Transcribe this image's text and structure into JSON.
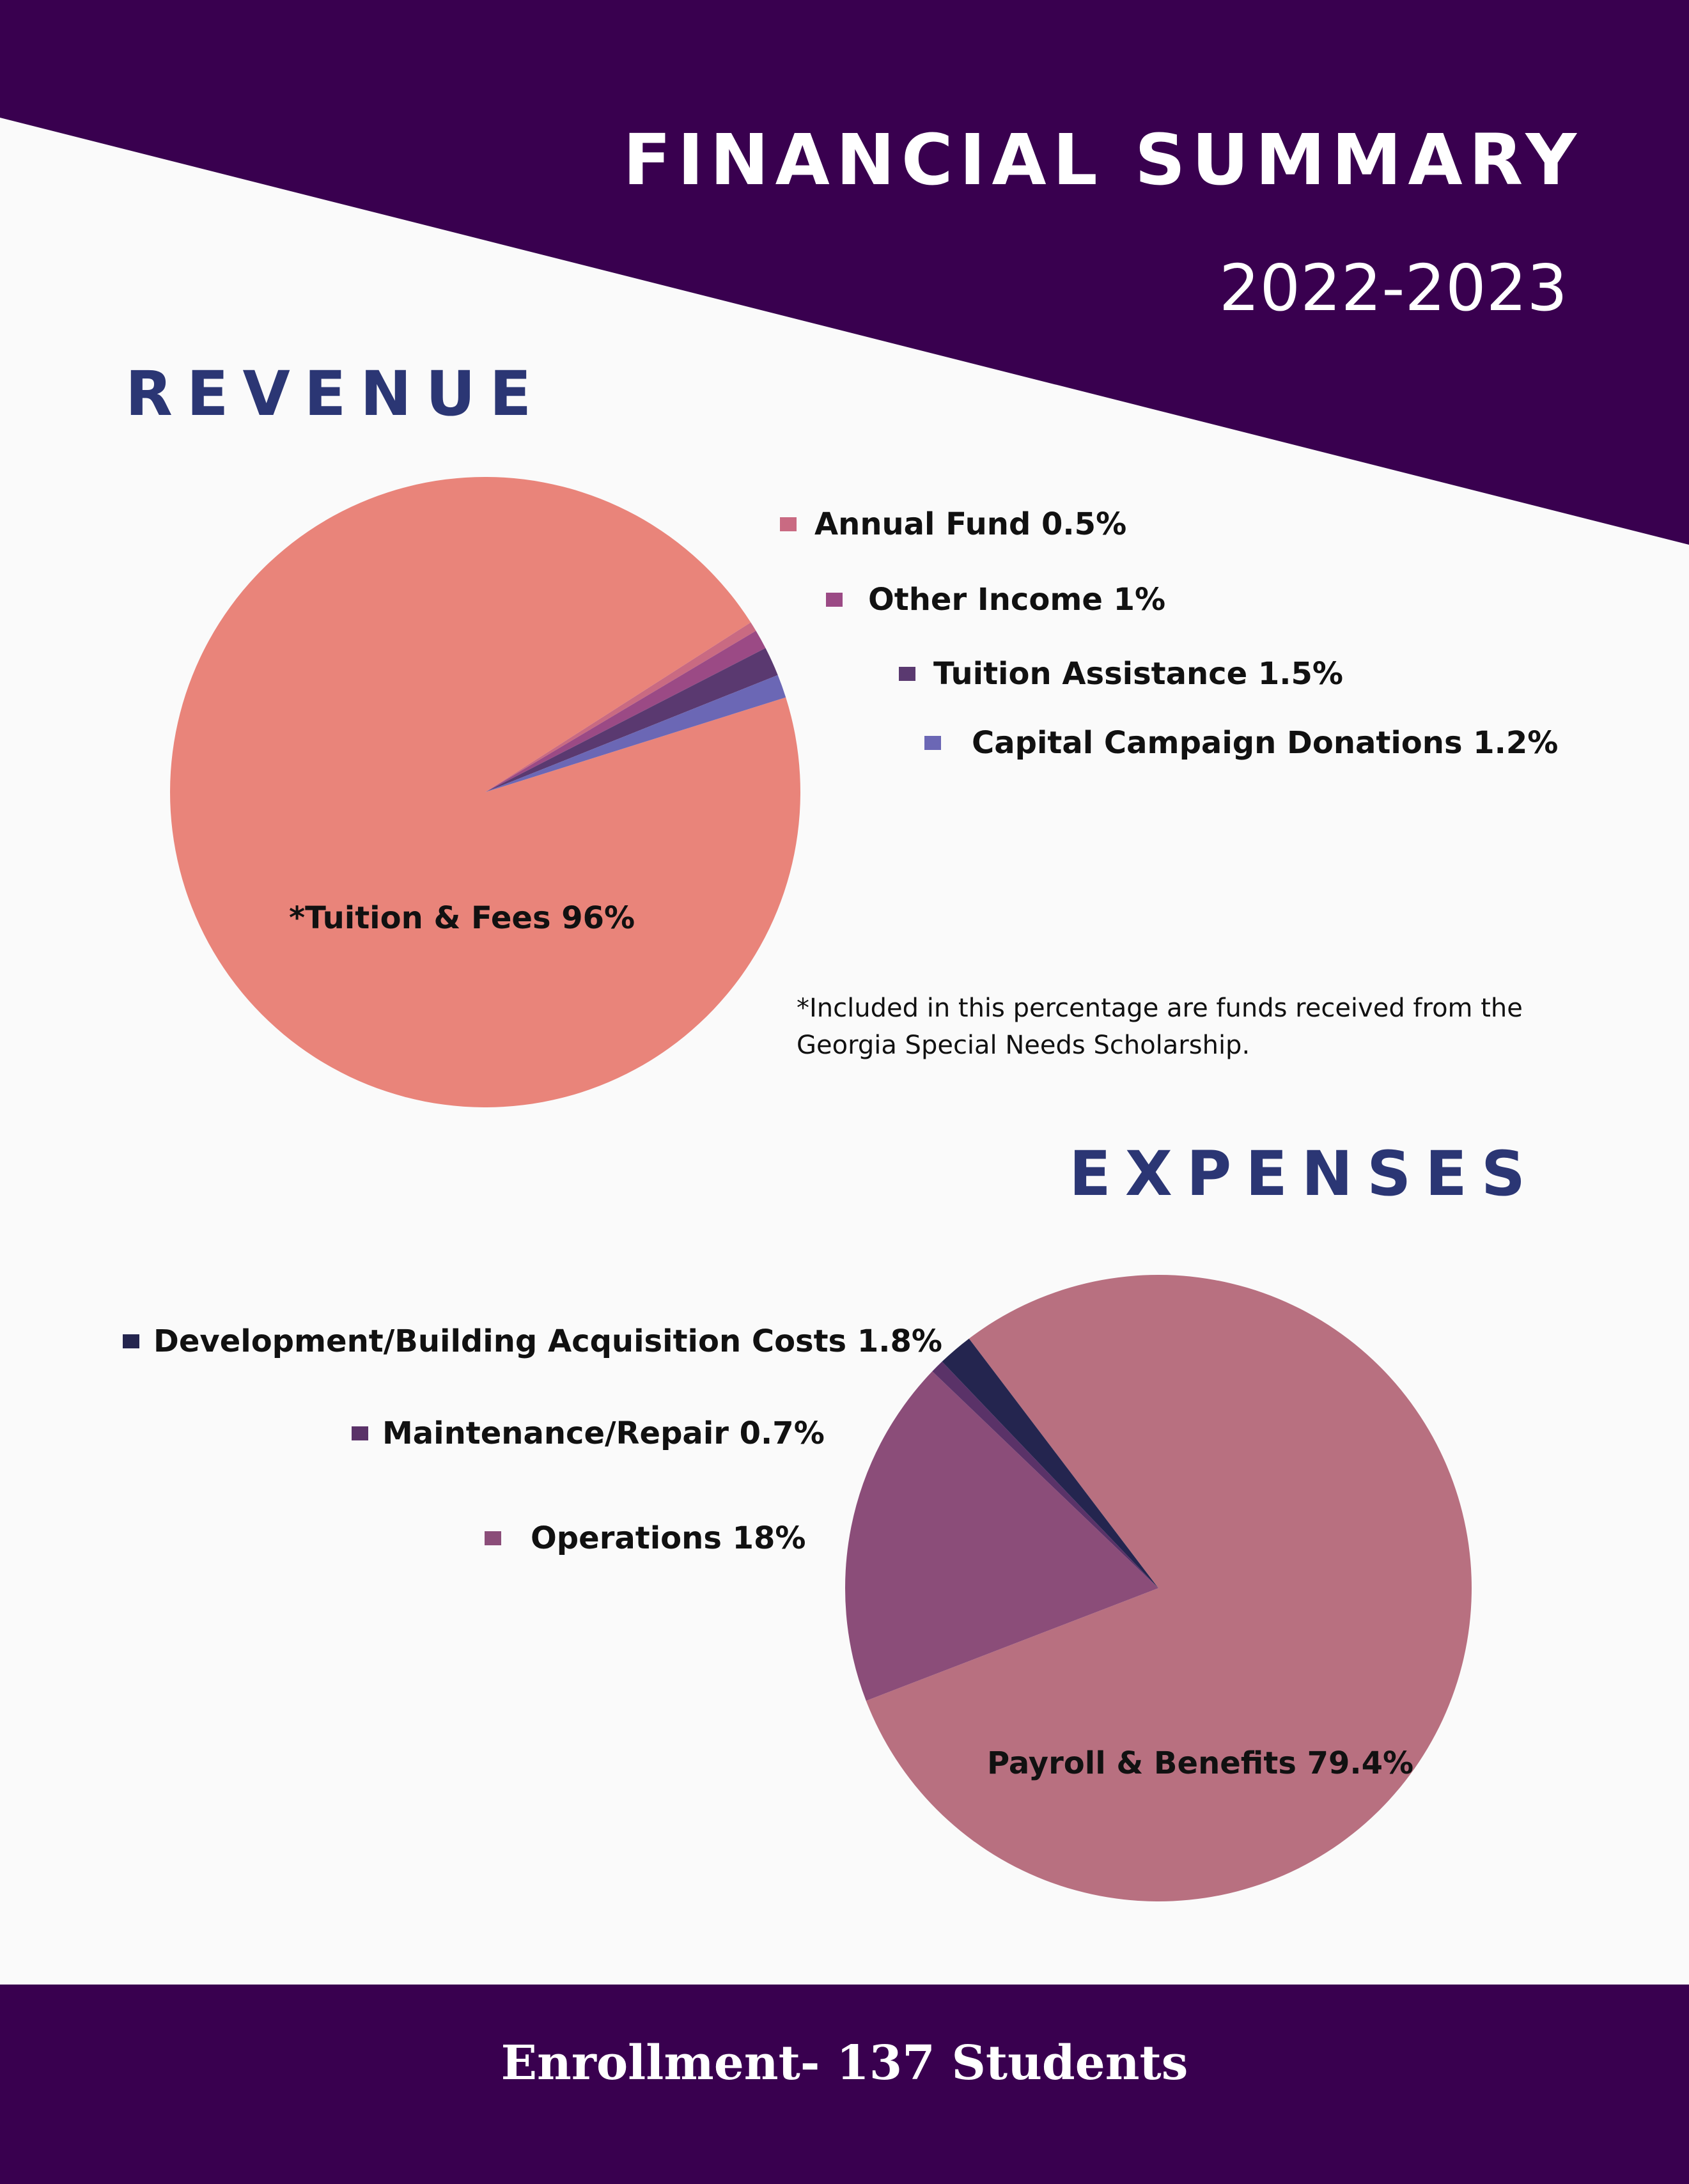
{
  "header": {
    "title": "FINANCIAL SUMMARY",
    "year": "2022-2023",
    "banner_color": "#39004f"
  },
  "revenue": {
    "heading": "REVENUE",
    "note": "*Included in this percentage are funds received from the Georgia Special Needs Scholarship.",
    "pie_label": "*Tuition & Fees  96%"
  },
  "expenses": {
    "heading": "EXPENSES",
    "pie_label": "Payroll & Benefits 79.4%"
  },
  "footer": {
    "text": "Enrollment- 137 Students"
  },
  "chart_data": [
    {
      "type": "pie",
      "title": "REVENUE",
      "slices": [
        {
          "label": "*Tuition & Fees",
          "display": "*Tuition & Fees  96%",
          "value": 96,
          "color": "#e9847a"
        },
        {
          "label": "Annual Fund",
          "display": "Annual Fund  0.5%",
          "value": 0.5,
          "color": "#c96a82"
        },
        {
          "label": "Other Income",
          "display": "Other Income  1%",
          "value": 1,
          "color": "#9b4a85"
        },
        {
          "label": "Tuition Assistance",
          "display": "Tuition Assistance  1.5%",
          "value": 1.5,
          "color": "#5a3970"
        },
        {
          "label": "Capital Campaign Donations",
          "display": "Capital Campaign Donations 1.2%",
          "value": 1.2,
          "color": "#6b67b5"
        }
      ],
      "legend_position": "right"
    },
    {
      "type": "pie",
      "title": "EXPENSES",
      "slices": [
        {
          "label": "Payroll & Benefits",
          "display": "Payroll & Benefits 79.4%",
          "value": 79.4,
          "color": "#b87080"
        },
        {
          "label": "Operations",
          "display": "Operations  18%",
          "value": 18,
          "color": "#8b4d79"
        },
        {
          "label": "Maintenance/Repair",
          "display": "Maintenance/Repair 0.7%",
          "value": 0.7,
          "color": "#5a3268"
        },
        {
          "label": "Development/Building Acquisition Costs",
          "display": "Development/Building Acquisition Costs  1.8%",
          "value": 1.8,
          "color": "#24254f"
        }
      ],
      "legend_position": "left"
    }
  ]
}
